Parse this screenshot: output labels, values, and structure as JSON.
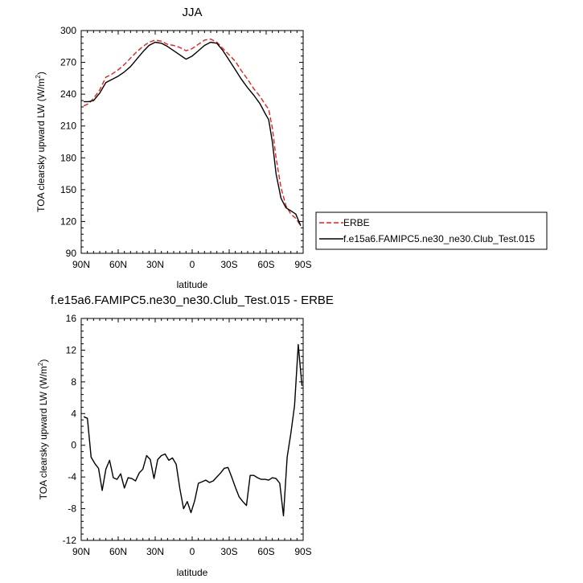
{
  "chart_data": [
    {
      "type": "line",
      "title": "JJA",
      "xlabel": "latitude",
      "ylabel": "TOA clearsky upward LW (W/m",
      "ylabel_sup": "2",
      "ylabel_close": ")",
      "xlim": [
        90,
        -90
      ],
      "ylim": [
        90,
        300
      ],
      "x_ticks": [
        90,
        60,
        30,
        0,
        -30,
        -60,
        -90
      ],
      "x_tick_labels": [
        "90N",
        "60N",
        "30N",
        "0",
        "30S",
        "60S",
        "90S"
      ],
      "y_ticks": [
        90,
        120,
        150,
        180,
        210,
        240,
        270,
        300
      ],
      "y_tick_labels": [
        "90",
        "120",
        "150",
        "180",
        "210",
        "240",
        "270",
        "300"
      ],
      "legend_position": "right",
      "series": [
        {
          "name": "ERBE",
          "color": "#e8201c",
          "dash": "dashed",
          "x": [
            88,
            84,
            80,
            75,
            70,
            65,
            60,
            55,
            50,
            45,
            40,
            35,
            30,
            25,
            20,
            15,
            10,
            5,
            0,
            -5,
            -10,
            -15,
            -20,
            -25,
            -30,
            -35,
            -40,
            -45,
            -50,
            -55,
            -60,
            -62,
            -65,
            -68,
            -72,
            -76,
            -80,
            -84,
            -88
          ],
          "y": [
            229,
            231,
            236,
            244,
            256,
            259,
            263,
            268,
            274,
            280,
            285,
            289,
            291,
            290,
            287,
            286,
            284,
            281,
            283,
            287,
            291,
            292,
            289,
            283,
            277,
            271,
            262,
            254,
            245,
            238,
            229,
            226,
            208,
            180,
            152,
            135,
            127,
            123,
            116
          ]
        },
        {
          "name": "f.e15a6.FAMIPC5.ne30_ne30.Club_Test.015",
          "color": "#000000",
          "dash": "solid",
          "x": [
            88,
            84,
            80,
            75,
            70,
            65,
            60,
            55,
            50,
            45,
            40,
            35,
            30,
            25,
            20,
            15,
            10,
            5,
            0,
            -5,
            -10,
            -15,
            -20,
            -25,
            -30,
            -35,
            -40,
            -45,
            -50,
            -55,
            -60,
            -62,
            -65,
            -68,
            -72,
            -76,
            -80,
            -84,
            -88
          ],
          "y": [
            233,
            233,
            234,
            241,
            251,
            254,
            257,
            261,
            266,
            273,
            280,
            286,
            289,
            288,
            285,
            281,
            277,
            273,
            276,
            281,
            286,
            289,
            288,
            281,
            272,
            263,
            254,
            246,
            239,
            231,
            220,
            216,
            195,
            165,
            142,
            133,
            130,
            127,
            116
          ]
        }
      ]
    },
    {
      "type": "line",
      "title": "f.e15a6.FAMIPC5.ne30_ne30.Club_Test.015 - ERBE",
      "xlabel": "latitude",
      "ylabel": "TOA clearsky upward LW (W/m",
      "ylabel_sup": "2",
      "ylabel_close": ")",
      "xlim": [
        90,
        -90
      ],
      "ylim": [
        -12,
        16
      ],
      "x_ticks": [
        90,
        60,
        30,
        0,
        -30,
        -60,
        -90
      ],
      "x_tick_labels": [
        "90N",
        "60N",
        "30N",
        "0",
        "30S",
        "60S",
        "90S"
      ],
      "y_ticks": [
        -12,
        -8,
        -4,
        0,
        4,
        8,
        12,
        16
      ],
      "y_tick_labels": [
        "-12",
        "-8",
        "-4",
        "0",
        "4",
        "8",
        "12",
        "16"
      ],
      "series": [
        {
          "color": "#000000",
          "dash": "solid",
          "x": [
            88,
            85,
            82,
            79,
            76,
            73,
            70,
            67,
            64,
            61,
            58,
            55,
            52,
            49,
            46,
            43,
            40,
            37,
            34,
            31,
            28,
            25,
            22,
            19,
            16,
            13,
            10,
            7,
            4,
            1,
            -2,
            -5,
            -8,
            -11,
            -14,
            -17,
            -20,
            -23,
            -26,
            -29,
            -32,
            -35,
            -38,
            -41,
            -44,
            -47,
            -50,
            -53,
            -56,
            -59,
            -62,
            -65,
            -68,
            -71,
            -74,
            -77,
            -80,
            -83,
            -86,
            -89
          ],
          "y": [
            3.6,
            3.4,
            -1.5,
            -2.3,
            -2.9,
            -5.7,
            -3.0,
            -1.9,
            -4.1,
            -4.3,
            -3.6,
            -5.4,
            -4.1,
            -4.2,
            -4.5,
            -3.5,
            -3.0,
            -1.3,
            -1.8,
            -4.2,
            -1.8,
            -1.3,
            -1.1,
            -1.9,
            -1.6,
            -2.4,
            -5.5,
            -8.0,
            -7.1,
            -8.5,
            -7.0,
            -4.8,
            -4.6,
            -4.4,
            -4.7,
            -4.5,
            -4.0,
            -3.5,
            -2.9,
            -2.8,
            -4.0,
            -5.3,
            -6.5,
            -7.1,
            -7.6,
            -3.8,
            -3.8,
            -4.1,
            -4.3,
            -4.3,
            -4.4,
            -4.1,
            -4.2,
            -4.8,
            -8.9,
            -1.5,
            1.5,
            5.0,
            12.7,
            7.5
          ]
        }
      ]
    }
  ],
  "legend": {
    "entries": [
      "ERBE",
      "f.e15a6.FAMIPC5.ne30_ne30.Club_Test.015"
    ]
  }
}
